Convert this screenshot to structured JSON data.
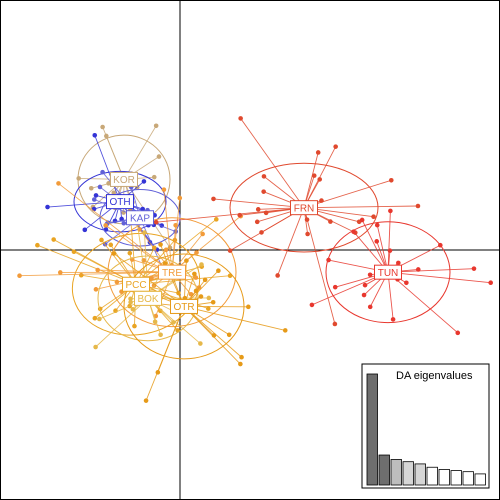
{
  "chart_data": {
    "type": "scatter",
    "title": "",
    "xlabel": "",
    "ylabel": "",
    "xlim": [
      -4.5,
      8.0
    ],
    "ylim": [
      -6.2,
      6.2
    ],
    "axes_cross": [
      0,
      0
    ],
    "grid": false,
    "legend": "none",
    "groups": [
      {
        "name": "KOR",
        "color": "#c8a878",
        "centroid": [
          -1.4,
          1.75
        ],
        "ellipse": [
          1.15,
          1.1,
          0
        ],
        "spread": [
          0.9,
          0.85
        ],
        "n": 18
      },
      {
        "name": "OTH",
        "color": "#3434d6",
        "centroid": [
          -1.5,
          1.2
        ],
        "ellipse": [
          1.15,
          0.75,
          0
        ],
        "spread": [
          0.85,
          0.6
        ],
        "n": 18
      },
      {
        "name": "KAP",
        "color": "#6060d8",
        "centroid": [
          -1.0,
          0.8
        ],
        "ellipse": [
          1.0,
          0.7,
          0
        ],
        "spread": [
          0.7,
          0.55
        ],
        "n": 16
      },
      {
        "name": "PCC",
        "color": "#e9a422",
        "centroid": [
          -1.1,
          -0.85
        ],
        "ellipse": [
          1.6,
          1.25,
          -10
        ],
        "spread": [
          1.1,
          0.9
        ],
        "n": 26
      },
      {
        "name": "TRE",
        "color": "#f29b3a",
        "centroid": [
          -0.2,
          -0.55
        ],
        "ellipse": [
          1.6,
          1.35,
          0
        ],
        "spread": [
          1.1,
          0.95
        ],
        "n": 24
      },
      {
        "name": "BOK",
        "color": "#e6b84a",
        "centroid": [
          -0.8,
          -1.2
        ],
        "ellipse": [
          1.25,
          1.05,
          0
        ],
        "spread": [
          0.85,
          0.75
        ],
        "n": 22
      },
      {
        "name": "OTR",
        "color": "#e69a18",
        "centroid": [
          0.1,
          -1.4
        ],
        "ellipse": [
          1.5,
          1.3,
          0
        ],
        "spread": [
          1.05,
          0.9
        ],
        "n": 22
      },
      {
        "name": "FRN",
        "color": "#e0492e",
        "centroid": [
          3.1,
          1.05
        ],
        "ellipse": [
          1.85,
          1.1,
          0
        ],
        "spread": [
          1.25,
          0.8
        ],
        "n": 26
      },
      {
        "name": "TUN",
        "color": "#e8372e",
        "centroid": [
          5.2,
          -0.55
        ],
        "ellipse": [
          1.55,
          1.25,
          0
        ],
        "spread": [
          1.25,
          0.75
        ],
        "n": 22
      }
    ],
    "inset": {
      "title": "DA eigenvalues",
      "values": [
        1.0,
        0.27,
        0.23,
        0.21,
        0.19,
        0.16,
        0.14,
        0.13,
        0.12,
        0.1
      ],
      "fills": [
        "#6e6e6e",
        "#6e6e6e",
        "#bdbdbd",
        "#d6d6d6",
        "#d6d6d6",
        "#ffffff",
        "#ffffff",
        "#ffffff",
        "#ffffff",
        "#ffffff"
      ],
      "retained": 2
    }
  }
}
